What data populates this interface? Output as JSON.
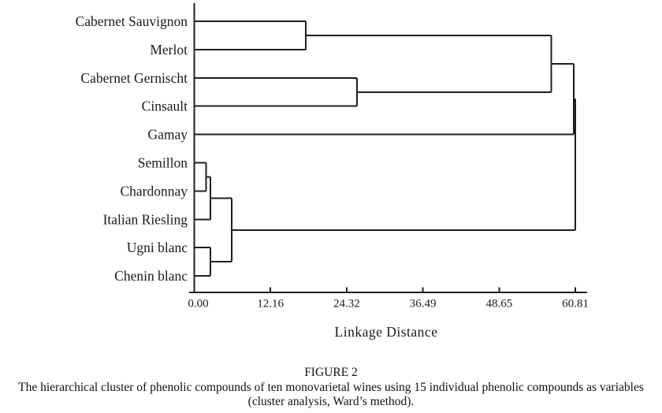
{
  "figure": {
    "caption_label": "FIGURE 2",
    "caption_line1": "The hierarchical cluster of phenolic compounds of ten monovarietal wines using 15 individual phenolic compounds as variables",
    "caption_line2": "(cluster analysis, Ward’s method)."
  },
  "colors": {
    "line": "#1f1f1f",
    "text": "#1a1a1a",
    "background": "#ffffff"
  },
  "chart_data": {
    "type": "dendrogram",
    "orientation": "horizontal",
    "title": "",
    "xlabel": "Linkage Distance",
    "ylabel": "",
    "xlim": [
      0,
      60.81
    ],
    "grid": false,
    "axis_ticks": [
      0.0,
      12.16,
      24.32,
      36.49,
      48.65,
      60.81
    ],
    "axis_tick_labels": [
      "0.00",
      "12.16",
      "24.32",
      "36.49",
      "48.65",
      "60.81"
    ],
    "leaves": [
      "Cabernet Sauvignon",
      "Merlot",
      "Cabernet Gernischt",
      "Cinsault",
      "Gamay",
      "Semillon",
      "Chardonnay",
      "Italian Riesling",
      "Ugni blanc",
      "Chenin blanc"
    ],
    "merges": [
      {
        "id": "m1",
        "children": [
          "Cabernet Sauvignon",
          "Merlot"
        ],
        "distance": 17.8
      },
      {
        "id": "m2",
        "children": [
          "Cabernet Gernischt",
          "Cinsault"
        ],
        "distance": 26.0
      },
      {
        "id": "m3",
        "children": [
          "m1",
          "m2"
        ],
        "distance": 57.0
      },
      {
        "id": "m4",
        "children": [
          "m3",
          "Gamay"
        ],
        "distance": 60.55
      },
      {
        "id": "m5",
        "children": [
          "Semillon",
          "Chardonnay"
        ],
        "distance": 1.9
      },
      {
        "id": "m6",
        "children": [
          "m5",
          "Italian Riesling"
        ],
        "distance": 2.6
      },
      {
        "id": "m7",
        "children": [
          "Ugni blanc",
          "Chenin blanc"
        ],
        "distance": 2.6
      },
      {
        "id": "m8",
        "children": [
          "m6",
          "m7"
        ],
        "distance": 6.0
      },
      {
        "id": "m9",
        "children": [
          "m4",
          "m8"
        ],
        "distance": 60.81
      }
    ]
  }
}
